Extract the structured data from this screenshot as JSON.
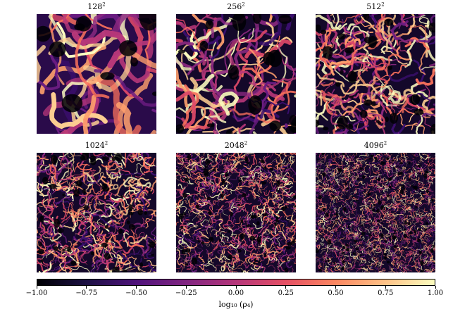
{
  "panels": [
    {
      "title_base": "128",
      "title_exp": "2",
      "grid_resolution": 128
    },
    {
      "title_base": "256",
      "title_exp": "2",
      "grid_resolution": 256
    },
    {
      "title_base": "512",
      "title_exp": "2",
      "grid_resolution": 512
    },
    {
      "title_base": "1024",
      "title_exp": "2",
      "grid_resolution": 1024
    },
    {
      "title_base": "2048",
      "title_exp": "2",
      "grid_resolution": 2048
    },
    {
      "title_base": "4096",
      "title_exp": "2",
      "grid_resolution": 4096
    }
  ],
  "colorbar": {
    "colormap": "magma",
    "min": -1.0,
    "max": 1.0,
    "ticks": [
      "−1.00",
      "−0.75",
      "−0.50",
      "−0.25",
      "0.00",
      "0.25",
      "0.50",
      "0.75",
      "1.00"
    ],
    "label": "log₁₀ (ρ₄)",
    "colors": [
      "#000004",
      "#1c1044",
      "#4f127b",
      "#812581",
      "#b5367a",
      "#e55064",
      "#fb8761",
      "#fec287",
      "#fcfdbf"
    ]
  }
}
